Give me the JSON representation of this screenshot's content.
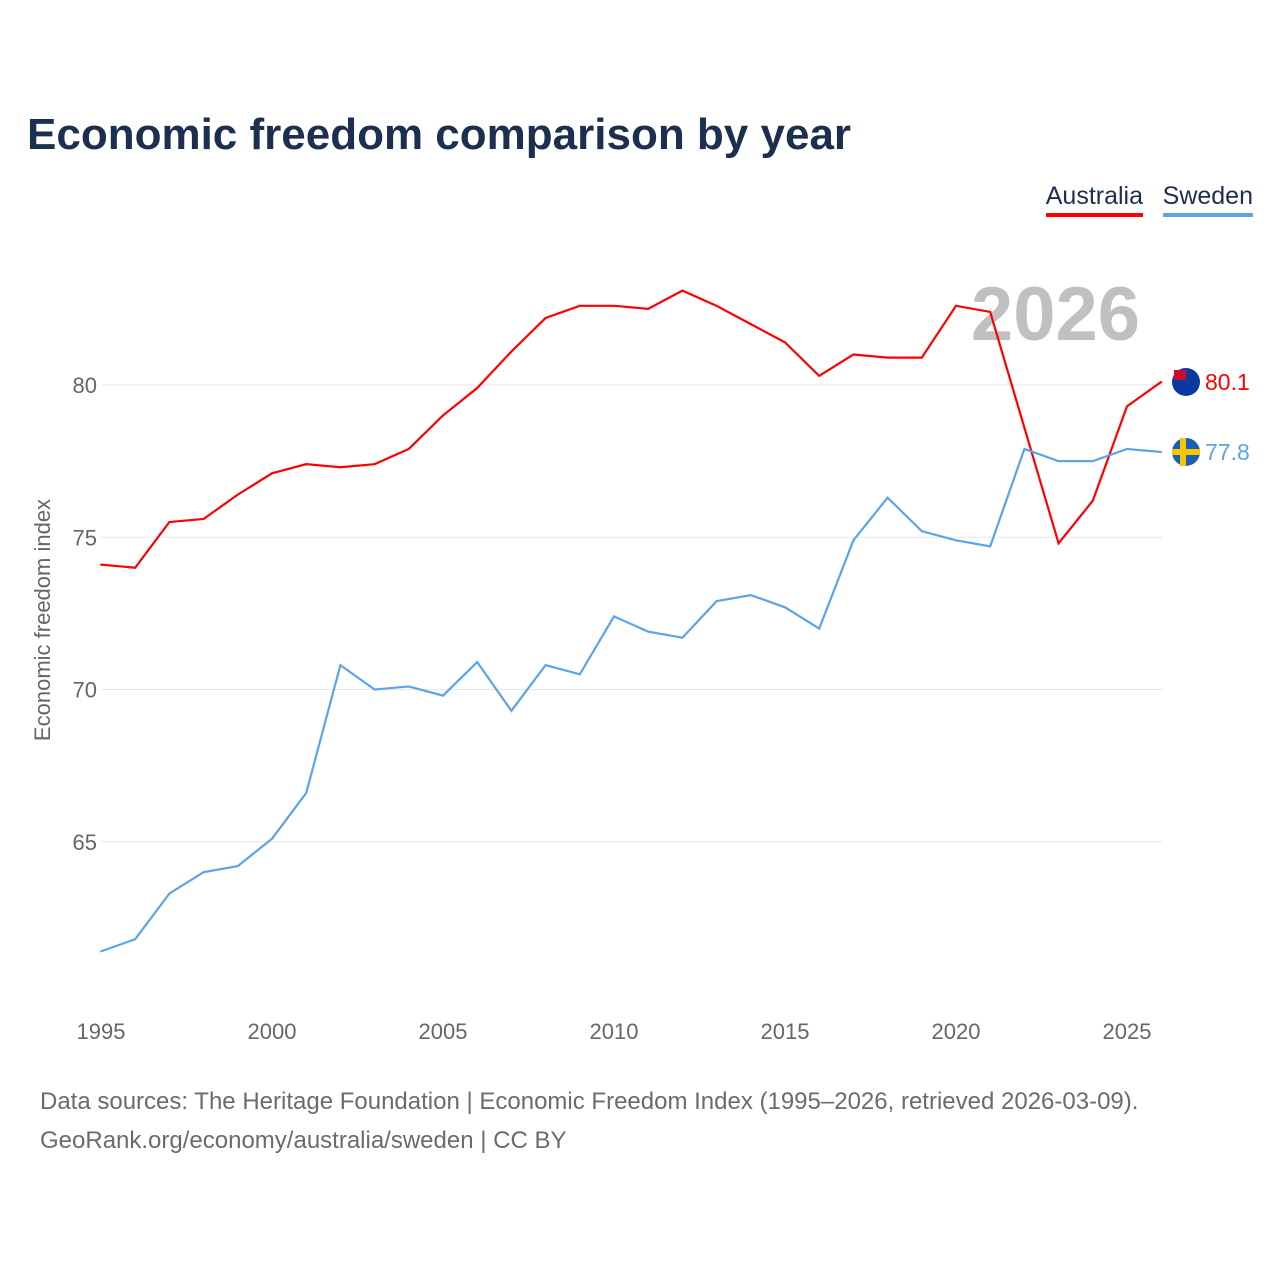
{
  "title": "Economic freedom comparison by year",
  "source_line1": "Data sources: The Heritage Foundation | Economic Freedom Index (1995–2026, retrieved 2026-03-09).",
  "source_line2": "GeoRank.org/economy/australia/sweden | CC BY",
  "chart_data": {
    "type": "line",
    "title": "Economic freedom comparison by year",
    "xlabel": "",
    "ylabel": "Economic freedom index",
    "watermark_year": "2026",
    "x": [
      1995,
      1996,
      1997,
      1998,
      1999,
      2000,
      2001,
      2002,
      2003,
      2004,
      2005,
      2006,
      2007,
      2008,
      2009,
      2010,
      2011,
      2012,
      2013,
      2014,
      2015,
      2016,
      2017,
      2018,
      2019,
      2020,
      2021,
      2022,
      2023,
      2024,
      2025,
      2026
    ],
    "xticks": [
      "1995",
      "2000",
      "2005",
      "2010",
      "2015",
      "2020",
      "2025"
    ],
    "yticks": [
      "65",
      "70",
      "75",
      "80"
    ],
    "ylim": [
      60.5,
      84.5
    ],
    "xlim": [
      1995,
      2026
    ],
    "grid": true,
    "legend_position": "top-right",
    "series": [
      {
        "name": "Australia",
        "color": "#ff0000",
        "end_label": "80.1",
        "values": [
          74.1,
          74.0,
          75.5,
          75.6,
          76.4,
          77.1,
          77.4,
          77.3,
          77.4,
          77.9,
          79.0,
          79.9,
          81.1,
          82.2,
          82.6,
          82.6,
          82.5,
          83.1,
          82.6,
          82.0,
          81.4,
          80.3,
          81.0,
          80.9,
          80.9,
          82.6,
          82.4,
          78.6,
          74.8,
          76.2,
          79.3,
          80.1
        ]
      },
      {
        "name": "Sweden",
        "color": "#5ba4e8",
        "end_label": "77.8",
        "values": [
          61.4,
          61.8,
          63.3,
          64.0,
          64.2,
          65.1,
          66.6,
          70.8,
          70.0,
          70.1,
          69.8,
          70.9,
          69.3,
          70.8,
          70.5,
          72.4,
          71.9,
          71.7,
          72.9,
          73.1,
          72.7,
          72.0,
          74.9,
          76.3,
          75.2,
          74.9,
          74.7,
          77.9,
          77.5,
          77.5,
          77.9,
          77.8
        ]
      }
    ]
  }
}
